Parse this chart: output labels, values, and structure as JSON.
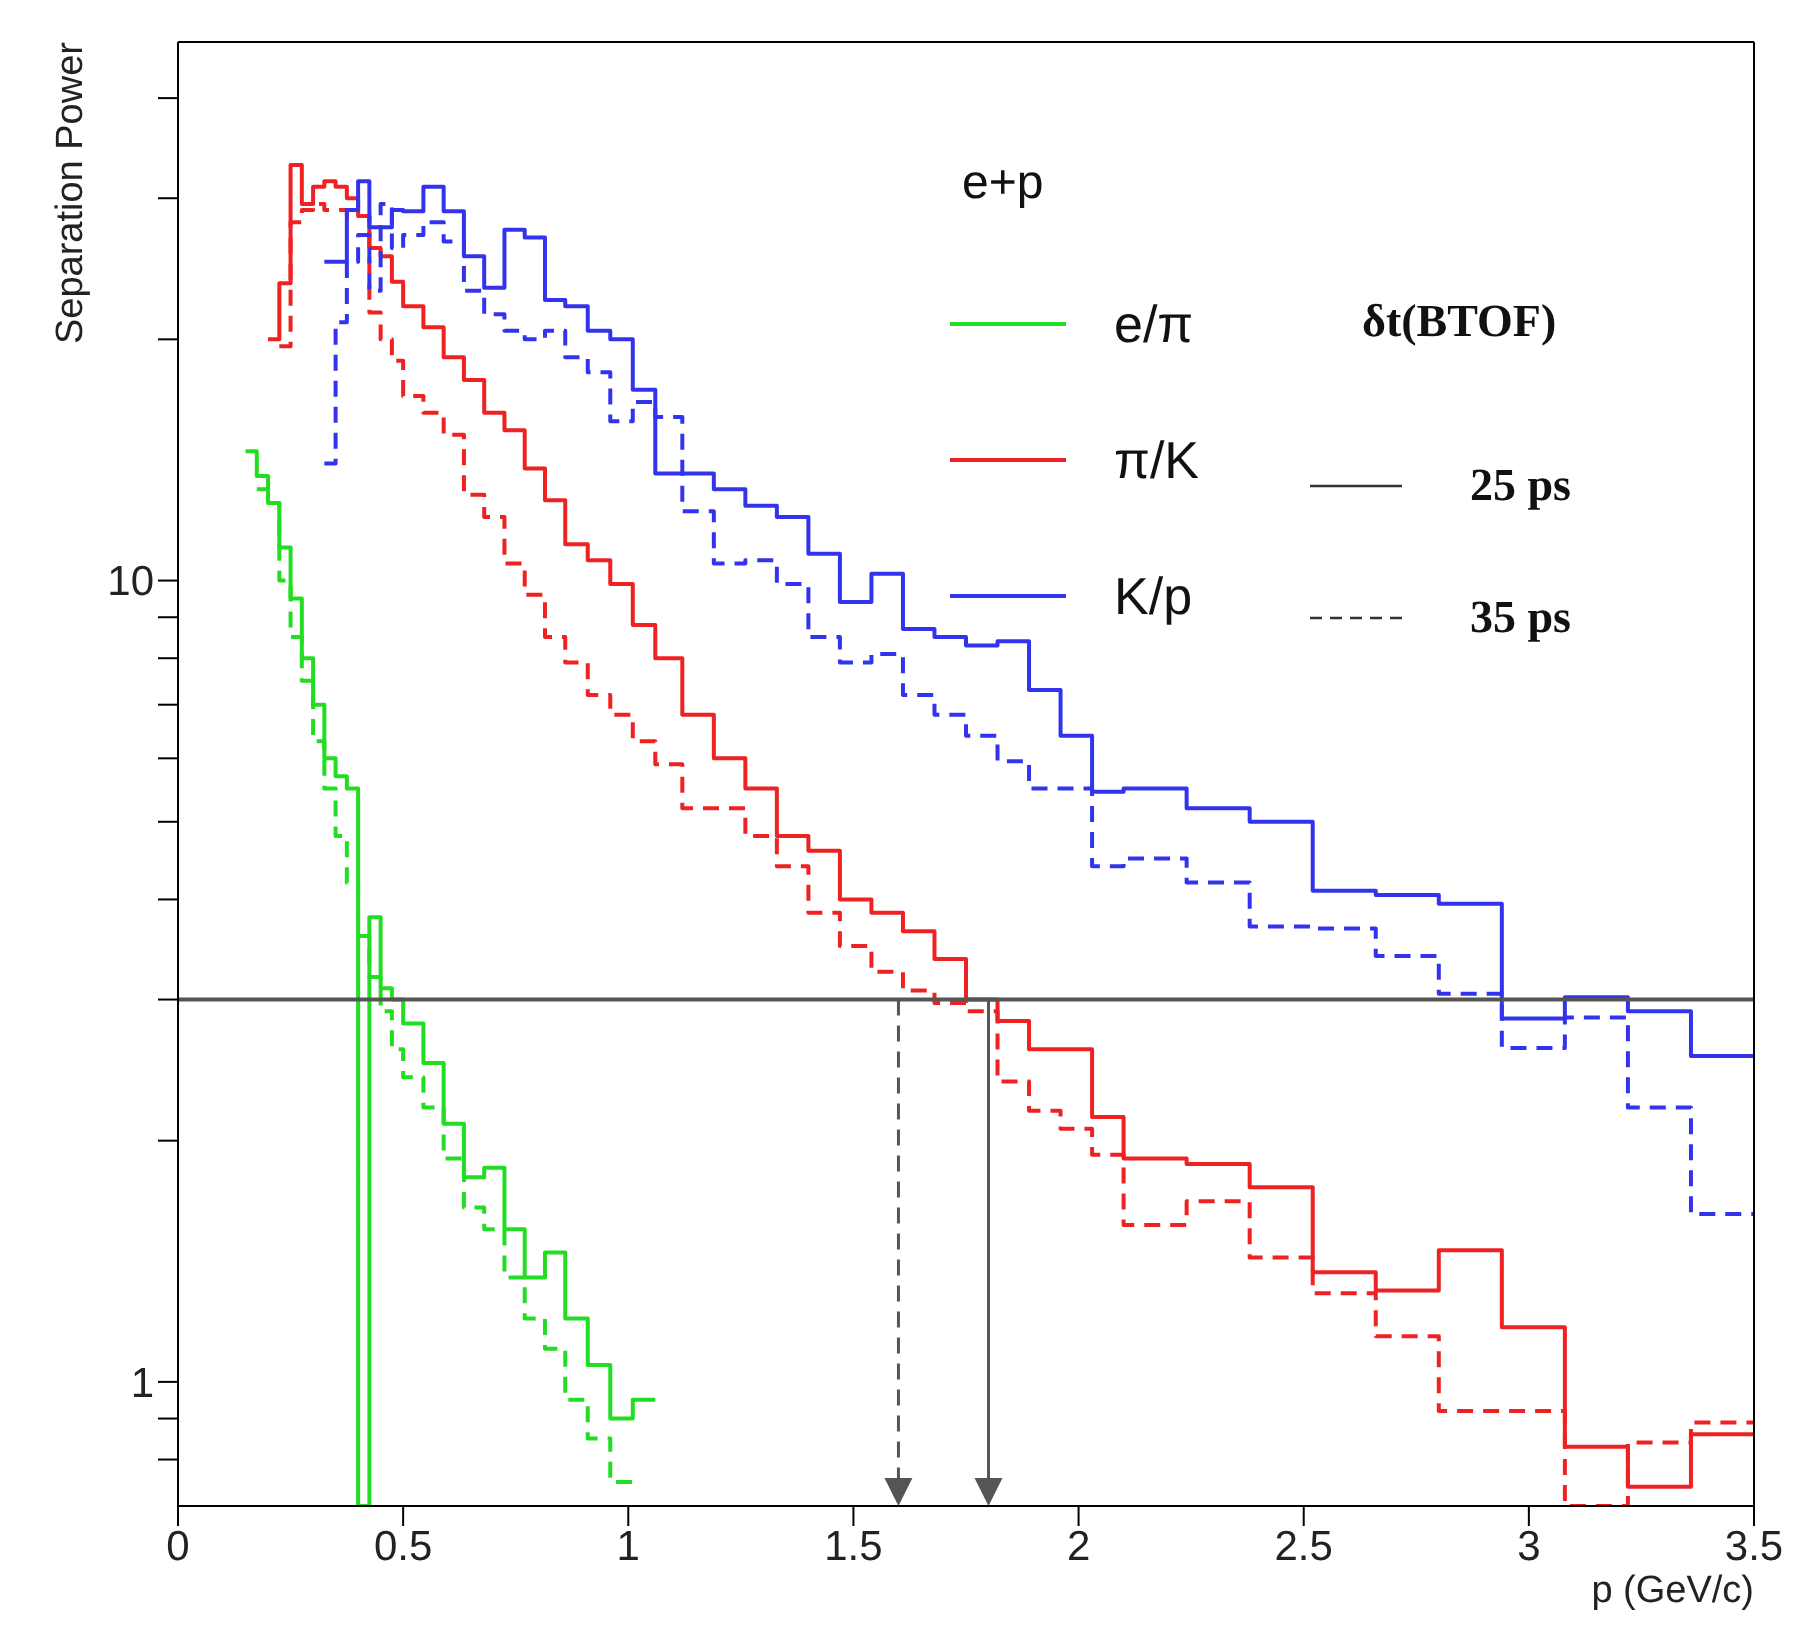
{
  "chart_data": {
    "type": "step",
    "grid": false,
    "xlabel": "p (GeV/c)",
    "ylabel": "Separation Power",
    "legend_title": "e+p",
    "legend": "top right",
    "log": "y",
    "series": [
      {
        "name": "e/π",
        "color": "#22dd22",
        "line_style": "solid",
        "x": [
          0.15,
          0.175,
          0.2,
          0.225,
          0.25,
          0.275,
          0.3,
          0.325,
          0.35,
          0.375,
          0.4,
          0.425,
          0.45,
          0.475,
          0.5,
          0.545,
          0.59,
          0.635,
          0.68,
          0.725,
          0.77,
          0.815,
          0.86,
          0.91,
          0.96,
          1.01,
          1.06
        ],
        "values": [
          14.5,
          13.5,
          12.5,
          11,
          9.5,
          8,
          7,
          6,
          5.7,
          5.5,
          0.7,
          3.8,
          3.1,
          3,
          2.8,
          2.5,
          2.1,
          1.8,
          1.85,
          1.55,
          1.35,
          1.45,
          1.2,
          1.05,
          0.9,
          0.95,
          0.95
        ]
      },
      {
        "color": "#22dd22",
        "line_style": "dashed",
        "x": [
          0.175,
          0.2,
          0.225,
          0.25,
          0.275,
          0.3,
          0.325,
          0.35,
          0.375,
          0.4,
          0.425,
          0.45,
          0.475,
          0.5,
          0.545,
          0.59,
          0.635,
          0.68,
          0.725,
          0.77,
          0.815,
          0.86,
          0.91,
          0.96,
          1.01
        ],
        "values": [
          13,
          12.5,
          10,
          8.5,
          7.5,
          6.3,
          5.5,
          4.8,
          4.2,
          3.6,
          3.2,
          2.9,
          2.6,
          2.4,
          2.2,
          1.9,
          1.65,
          1.55,
          1.35,
          1.2,
          1.1,
          0.95,
          0.85,
          0.75,
          0.75
        ]
      },
      {
        "name": "π/K",
        "color": "#ee2222",
        "line_style": "solid",
        "x": [
          0.2,
          0.225,
          0.25,
          0.275,
          0.3,
          0.325,
          0.35,
          0.375,
          0.4,
          0.425,
          0.45,
          0.475,
          0.5,
          0.545,
          0.59,
          0.635,
          0.68,
          0.725,
          0.77,
          0.815,
          0.86,
          0.91,
          0.96,
          1.01,
          1.06,
          1.12,
          1.19,
          1.26,
          1.33,
          1.4,
          1.47,
          1.54,
          1.61,
          1.68,
          1.75,
          1.82,
          1.89,
          1.96,
          2.03,
          2.1,
          2.24,
          2.38,
          2.52,
          2.66,
          2.8,
          2.94,
          3.08,
          3.22,
          3.36,
          3.5
        ],
        "values": [
          20,
          23.5,
          33,
          29.5,
          31,
          31.5,
          31,
          30,
          28.5,
          26,
          25.4,
          23.6,
          22,
          20.7,
          19,
          17.8,
          16.2,
          15.4,
          13.8,
          12.6,
          11.1,
          10.6,
          9.9,
          8.8,
          8,
          6.8,
          6,
          5.5,
          4.8,
          4.6,
          4,
          3.85,
          3.65,
          3.37,
          3,
          2.82,
          2.6,
          2.6,
          2.14,
          1.9,
          1.87,
          1.75,
          1.37,
          1.3,
          1.46,
          1.17,
          0.83,
          0.74,
          0.86,
          0.86
        ]
      },
      {
        "color": "#ee2222",
        "line_style": "dashed",
        "x": [
          0.225,
          0.25,
          0.275,
          0.3,
          0.325,
          0.35,
          0.375,
          0.4,
          0.425,
          0.45,
          0.475,
          0.5,
          0.545,
          0.59,
          0.635,
          0.68,
          0.725,
          0.77,
          0.815,
          0.86,
          0.91,
          0.96,
          1.01,
          1.06,
          1.12,
          1.19,
          1.26,
          1.33,
          1.4,
          1.47,
          1.54,
          1.61,
          1.68,
          1.75,
          1.82,
          1.89,
          1.96,
          2.03,
          2.1,
          2.24,
          2.38,
          2.52,
          2.66,
          2.8,
          2.94,
          3.08,
          3.22,
          3.36,
          3.5
        ],
        "values": [
          19.6,
          28,
          29,
          29.5,
          29,
          29,
          28.5,
          28.5,
          21.6,
          20,
          18.8,
          17,
          16.2,
          15.2,
          12.8,
          12,
          10.5,
          9.6,
          8.5,
          7.9,
          7.2,
          6.8,
          6.3,
          5.9,
          5.2,
          5.2,
          4.8,
          4.4,
          3.85,
          3.5,
          3.25,
          3.08,
          2.97,
          2.9,
          2.37,
          2.18,
          2.07,
          1.92,
          1.57,
          1.68,
          1.43,
          1.29,
          1.14,
          0.92,
          0.92,
          0.7,
          0.84,
          0.89,
          0.89
        ]
      },
      {
        "name": "K/p",
        "color": "#3333ee",
        "line_style": "solid",
        "x": [
          0.325,
          0.35,
          0.375,
          0.4,
          0.425,
          0.45,
          0.475,
          0.5,
          0.545,
          0.59,
          0.635,
          0.68,
          0.725,
          0.77,
          0.815,
          0.86,
          0.91,
          0.96,
          1.01,
          1.06,
          1.12,
          1.19,
          1.26,
          1.33,
          1.4,
          1.47,
          1.54,
          1.61,
          1.68,
          1.75,
          1.82,
          1.89,
          1.96,
          2.03,
          2.1,
          2.24,
          2.38,
          2.52,
          2.66,
          2.8,
          2.94,
          3.08,
          3.22,
          3.36,
          3.5
        ],
        "values": [
          25,
          25,
          29,
          31.5,
          27.6,
          27.6,
          29,
          28.9,
          31,
          28.9,
          25.4,
          23.2,
          27.4,
          26.8,
          22.4,
          22,
          20.5,
          20,
          17.3,
          13.6,
          13.6,
          13,
          12.4,
          12,
          10.8,
          9.4,
          10.2,
          8.7,
          8.5,
          8.3,
          8.4,
          7.3,
          6.4,
          5.45,
          5.5,
          5.2,
          5,
          4.1,
          4.05,
          3.95,
          2.84,
          3.02,
          2.9,
          2.55,
          2.55
        ]
      },
      {
        "color": "#3333ee",
        "line_style": "dashed",
        "x": [
          0.325,
          0.35,
          0.375,
          0.4,
          0.425,
          0.45,
          0.475,
          0.5,
          0.545,
          0.59,
          0.635,
          0.68,
          0.725,
          0.77,
          0.815,
          0.86,
          0.91,
          0.96,
          1.01,
          1.06,
          1.12,
          1.19,
          1.26,
          1.33,
          1.4,
          1.47,
          1.54,
          1.61,
          1.68,
          1.75,
          1.82,
          1.89,
          1.96,
          2.03,
          2.1,
          2.24,
          2.38,
          2.52,
          2.66,
          2.8,
          2.94,
          3.08,
          3.22,
          3.36,
          3.5
        ],
        "values": [
          14,
          21,
          25,
          27,
          23,
          29.5,
          26,
          27,
          28,
          26.5,
          23,
          21.5,
          20.5,
          20,
          20.5,
          19,
          18.2,
          15.8,
          16.7,
          16,
          12.2,
          10.5,
          10.6,
          9.9,
          8.5,
          7.9,
          8.1,
          7.2,
          6.8,
          6.4,
          5.95,
          5.5,
          5.5,
          4.4,
          4.5,
          4.2,
          3.7,
          3.68,
          3.4,
          3.05,
          2.61,
          2.85,
          2.2,
          1.62,
          1.62
        ]
      }
    ],
    "xlim": [
      0,
      3.5
    ],
    "xticks": [
      0,
      0.5,
      1,
      1.5,
      2,
      2.5,
      3,
      3.5
    ],
    "ylim": [
      0.7,
      47
    ],
    "yticks": [
      {
        "value": 0.8,
        "label": null
      },
      {
        "value": 0.9,
        "label": null
      },
      1,
      {
        "value": 2,
        "label": null
      },
      {
        "value": 3,
        "label": null
      },
      {
        "value": 4,
        "label": null
      },
      {
        "value": 5,
        "label": null
      },
      {
        "value": 6,
        "label": null
      },
      {
        "value": 7,
        "label": null
      },
      {
        "value": 8,
        "label": null
      },
      {
        "value": 9,
        "label": null
      },
      10,
      {
        "value": 20,
        "label": null
      },
      {
        "value": 30,
        "label": null
      },
      {
        "value": 40,
        "label": null
      }
    ],
    "ref_lines": [
      {
        "axis": "y",
        "value": 3,
        "color": "#555555",
        "line_style": "solid"
      },
      {
        "axis": "x",
        "value": 1.6,
        "color": "#555555",
        "line_style": "dashed"
      },
      {
        "axis": "x",
        "value": 1.8,
        "color": "#555555",
        "line_style": "solid"
      }
    ],
    "annotations": [
      "δt(BTOF)",
      "25 ps",
      "35 ps"
    ]
  }
}
